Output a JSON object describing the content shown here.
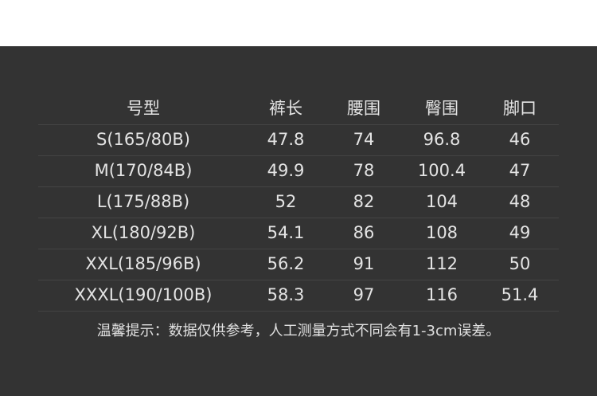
{
  "headers": [
    "号型",
    "裤长",
    "腰围",
    "臀围",
    "脚口"
  ],
  "rows": [
    [
      "S(165/80B)",
      "47.8",
      "74",
      "96.8",
      "46"
    ],
    [
      "M(170/84B)",
      "49.9",
      "78",
      "100.4",
      "47"
    ],
    [
      "L(175/88B)",
      "52",
      "82",
      "104",
      "48"
    ],
    [
      "XL(180/92B)",
      "54.1",
      "86",
      "108",
      "49"
    ],
    [
      "XXL(185/96B)",
      "56.2",
      "91",
      "112",
      "50"
    ],
    [
      "XXXL(190/100B)",
      "58.3",
      "97",
      "116",
      "51.4"
    ]
  ],
  "note": "温馨提示：数据仅供参考，人工测量方式不同会有1-3cm误差。",
  "colors": {
    "background": "#333333",
    "text": "#e4e4e4",
    "divider": "#444444"
  }
}
